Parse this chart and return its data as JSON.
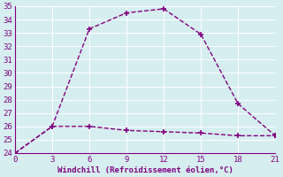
{
  "line1_x": [
    0,
    3,
    6,
    9,
    12,
    15,
    18,
    21
  ],
  "line1_y": [
    24.0,
    26.0,
    33.3,
    34.5,
    34.8,
    32.9,
    27.7,
    25.3
  ],
  "line2_x": [
    0,
    3,
    6,
    9,
    12,
    15,
    18,
    21
  ],
  "line2_y": [
    24.0,
    26.0,
    26.0,
    25.7,
    25.6,
    25.5,
    25.3,
    25.3
  ],
  "line_color": "#800080",
  "marker": "P",
  "xlabel": "Windchill (Refroidissement éolien,°C)",
  "xlim": [
    0,
    21
  ],
  "ylim": [
    24,
    35
  ],
  "xticks": [
    0,
    3,
    6,
    9,
    12,
    15,
    18,
    21
  ],
  "yticks": [
    24,
    25,
    26,
    27,
    28,
    29,
    30,
    31,
    32,
    33,
    34,
    35
  ],
  "bg_color": "#d6eef0",
  "grid_color": "#b8d8dc",
  "tick_color": "#800080",
  "label_color": "#800080",
  "marker_size": 4,
  "line_width": 1.0,
  "linestyle": "--"
}
